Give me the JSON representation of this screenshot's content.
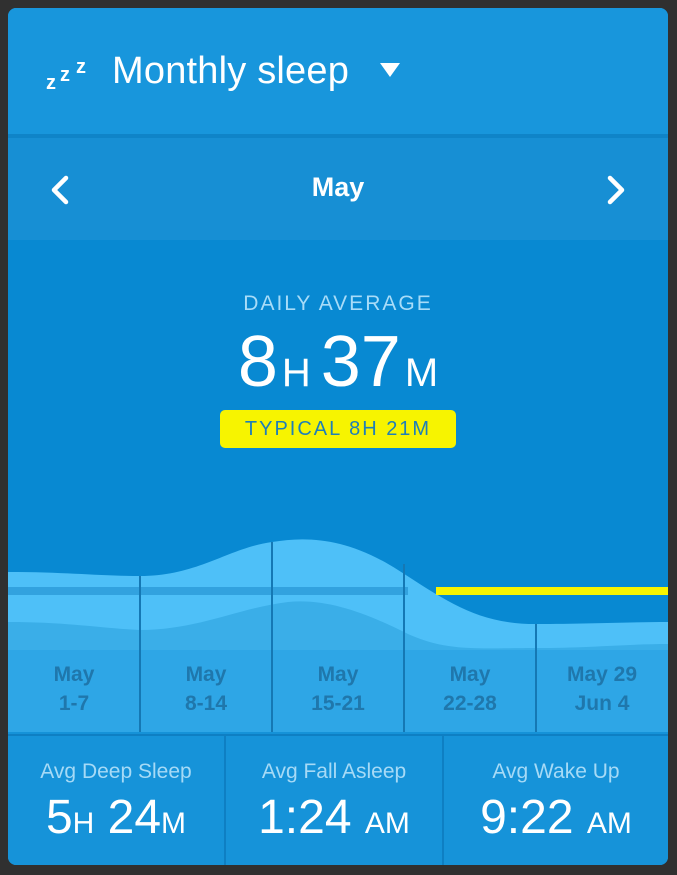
{
  "header": {
    "title": "Monthly sleep",
    "icon": "zzz-icon",
    "dropdown_icon": "caret-down-icon"
  },
  "nav": {
    "month": "May",
    "prev_icon": "chevron-left-icon",
    "next_icon": "chevron-right-icon"
  },
  "daily_average": {
    "label": "DAILY AVERAGE",
    "hours": "8",
    "hours_unit": "H",
    "minutes": "37",
    "minutes_unit": "M",
    "typical": "TYPICAL 8H 21M"
  },
  "weeks": [
    {
      "line1": "May",
      "line2": "1-7"
    },
    {
      "line1": "May",
      "line2": "8-14"
    },
    {
      "line1": "May",
      "line2": "15-21"
    },
    {
      "line1": "May",
      "line2": "22-28"
    },
    {
      "line1": "May 29",
      "line2": "Jun 4"
    }
  ],
  "stats": [
    {
      "label": "Avg Deep Sleep",
      "value_a": "5",
      "unit_a": "H",
      "value_b": "24",
      "unit_b": "M"
    },
    {
      "label": "Avg Fall Asleep",
      "value_a": "1:24",
      "unit_a": "AM"
    },
    {
      "label": "Avg Wake Up",
      "value_a": "9:22",
      "unit_a": "AM"
    }
  ],
  "colors": {
    "background": "#1592d8",
    "typical_badge": "#f7f400",
    "chart_light": "#4ec0f8",
    "chart_mid": "#3aaee8"
  }
}
